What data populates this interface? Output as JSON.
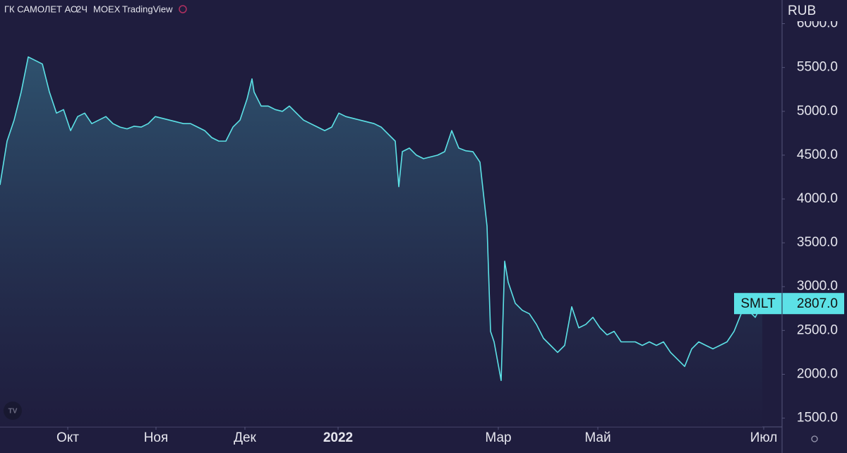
{
  "chart_data": {
    "type": "area",
    "title": "ГК САМОЛЕТ АО",
    "interval": "2Ч",
    "exchange": "MOEX",
    "source": "TradingView",
    "currency": "RUB",
    "x": [
      0,
      1,
      2,
      3,
      4,
      5,
      6,
      7,
      8,
      9,
      10,
      11,
      12,
      13,
      14,
      15,
      16,
      17,
      18,
      19,
      20,
      21,
      22,
      23,
      24,
      25,
      26,
      27,
      28,
      29,
      30,
      31,
      32,
      33,
      34,
      35,
      35.7,
      36,
      37,
      38,
      39,
      40,
      41,
      42,
      43,
      44,
      45,
      46,
      47,
      48,
      49,
      50,
      51,
      52,
      53,
      54,
      55,
      56,
      56.5,
      57,
      58,
      59,
      60,
      61,
      62,
      63,
      64,
      65,
      66,
      67,
      68,
      69,
      69.5,
      70,
      71,
      71.5,
      72,
      73,
      74,
      75,
      76,
      77,
      78,
      79,
      80,
      81,
      82,
      83,
      84,
      85,
      86,
      87,
      88,
      89,
      90,
      91,
      92,
      93,
      94,
      95,
      96,
      97,
      98,
      99,
      100,
      101,
      102,
      103,
      104,
      105,
      106,
      107,
      108
    ],
    "series": [
      {
        "name": "SMLT",
        "color": "#5ce1e6",
        "values": [
          4160,
          4660,
          4900,
          5220,
          5620,
          5580,
          5540,
          5220,
          4980,
          5020,
          4780,
          4940,
          4980,
          4860,
          4900,
          4940,
          4860,
          4820,
          4800,
          4830,
          4820,
          4860,
          4940,
          4920,
          4900,
          4880,
          4860,
          4860,
          4820,
          4780,
          4700,
          4660,
          4660,
          4820,
          4900,
          5140,
          5370,
          5220,
          5060,
          5060,
          5020,
          5000,
          5060,
          4980,
          4900,
          4860,
          4820,
          4780,
          4820,
          4980,
          4940,
          4920,
          4900,
          4880,
          4860,
          4820,
          4740,
          4660,
          4140,
          4540,
          4580,
          4500,
          4460,
          4480,
          4500,
          4540,
          4780,
          4580,
          4550,
          4540,
          4420,
          3690,
          2490,
          2370,
          1930,
          3290,
          3050,
          2810,
          2730,
          2690,
          2570,
          2410,
          2330,
          2250,
          2330,
          2770,
          2530,
          2570,
          2650,
          2530,
          2450,
          2490,
          2370,
          2370,
          2370,
          2330,
          2370,
          2330,
          2370,
          2250,
          2170,
          2090,
          2290,
          2370,
          2330,
          2290,
          2330,
          2370,
          2490,
          2690,
          2730,
          2650,
          2807
        ]
      }
    ],
    "price_tag": {
      "name": "SMLT",
      "value": 2807,
      "label": "2807.0"
    },
    "xlim": [
      0,
      110.8
    ],
    "xticks": [
      {
        "value": 9.6,
        "label": "Окт"
      },
      {
        "value": 22.1,
        "label": "Ноя"
      },
      {
        "value": 34.7,
        "label": "Дек"
      },
      {
        "value": 47.9,
        "label": "2022"
      },
      {
        "value": 70.6,
        "label": "Мар"
      },
      {
        "value": 84.7,
        "label": "Май"
      },
      {
        "value": 108.2,
        "label": "Июл"
      }
    ],
    "ylim": [
      1400,
      6270
    ],
    "yticks": [
      {
        "value": 1500,
        "label": "1500.0"
      },
      {
        "value": 2000,
        "label": "2000.0"
      },
      {
        "value": 2500,
        "label": "2500.0"
      },
      {
        "value": 3000,
        "label": "3000.0"
      },
      {
        "value": 3500,
        "label": "3500.0"
      },
      {
        "value": 4000,
        "label": "4000.0"
      },
      {
        "value": 4500,
        "label": "4500.0"
      },
      {
        "value": 5000,
        "label": "5000.0"
      },
      {
        "value": 5500,
        "label": "5500.0"
      },
      {
        "value": 6000,
        "label": "6000.0"
      }
    ],
    "grid": false
  }
}
